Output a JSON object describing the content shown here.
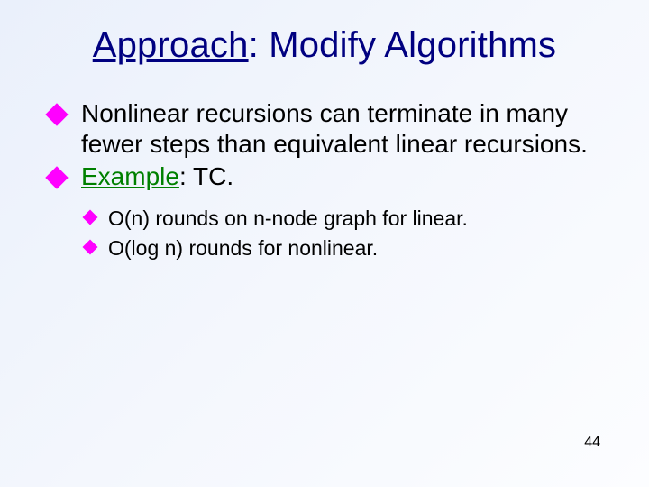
{
  "colors": {
    "title_color": "#000080",
    "bullet_marker_color": "#ff00ff",
    "example_label_color": "#008000",
    "text_color": "#000000",
    "bg_gradient_start": "#eaf0fb",
    "bg_gradient_mid": "#f4f7fd",
    "bg_gradient_end": "#fcfdff"
  },
  "typography": {
    "title_fontsize": 40,
    "l1_fontsize": 28,
    "l2_fontsize": 23,
    "pagenum_fontsize": 16,
    "font_family": "Verdana"
  },
  "title": {
    "underlined_word": "Approach",
    "rest": ": Modify Algorithms"
  },
  "bullets_l1": [
    {
      "text": "Nonlinear recursions can terminate in many fewer steps than equivalent linear recursions."
    },
    {
      "example_label": "Example",
      "example_rest": ": TC."
    }
  ],
  "bullets_l2": [
    {
      "text": "O(n) rounds on n-node graph for linear."
    },
    {
      "text": "O(log n) rounds for nonlinear."
    }
  ],
  "page_number": "44"
}
